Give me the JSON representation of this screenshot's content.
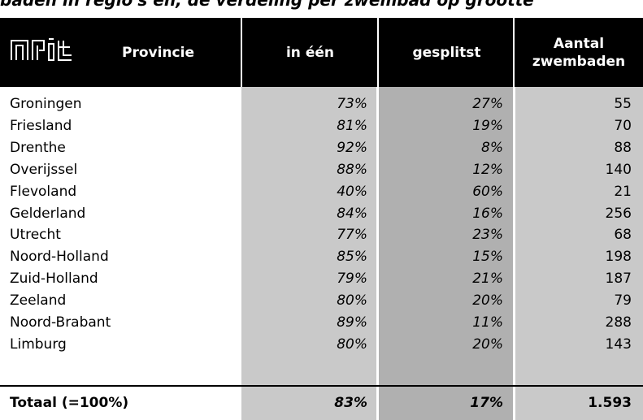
{
  "header": {
    "caption": "baden in regio's en, de verdeling per zwembad op grootte"
  },
  "table": {
    "columns": [
      "Provincie",
      "in één",
      "gesplitst",
      "Aantal zwembaden"
    ],
    "rows": [
      [
        "Groningen",
        "73%",
        "27%",
        "55"
      ],
      [
        "Friesland",
        "81%",
        "19%",
        "70"
      ],
      [
        "Drenthe",
        "92%",
        "8%",
        "88"
      ],
      [
        "Overijssel",
        "88%",
        "12%",
        "140"
      ],
      [
        "Flevoland",
        "40%",
        "60%",
        "21"
      ],
      [
        "Gelderland",
        "84%",
        "16%",
        "256"
      ],
      [
        "Utrecht",
        "77%",
        "23%",
        "68"
      ],
      [
        "Noord-Holland",
        "85%",
        "15%",
        "198"
      ],
      [
        "Zuid-Holland",
        "79%",
        "21%",
        "187"
      ],
      [
        "Zeeland",
        "80%",
        "20%",
        "79"
      ],
      [
        "Noord-Brabant",
        "89%",
        "11%",
        "288"
      ],
      [
        "Limburg",
        "80%",
        "20%",
        "143"
      ]
    ],
    "total": [
      "Totaal (=100%)",
      "83%",
      "17%",
      "1.593"
    ]
  }
}
